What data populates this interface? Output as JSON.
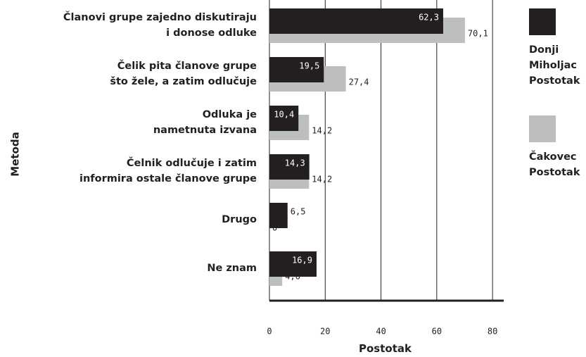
{
  "chart_data": {
    "type": "barh",
    "categories": [
      "Članovi grupe zajedno diskutiraju\ni donose odluke",
      "Čelik pita članove grupe\nšto žele, a zatim odlučuje",
      "Odluka je\nnametnuta izvana",
      "Čelnik odlučuje i zatim\ninformira ostale članove grupe",
      "Drugo",
      "Ne znam"
    ],
    "series": [
      {
        "name": "Donji Miholjac Postotak",
        "color": "#231f20",
        "values": [
          62.3,
          19.5,
          10.4,
          14.3,
          6.5,
          16.9
        ],
        "value_labels": [
          "62,3",
          "19,5",
          "10,4",
          "14,3",
          "6,5",
          "16,9"
        ]
      },
      {
        "name": "Čakovec Postotak",
        "color": "#bcbec0",
        "values": [
          70.1,
          27.4,
          14.2,
          14.2,
          0,
          4.6
        ],
        "value_labels": [
          "70,1",
          "27,4",
          "14,2",
          "14,2",
          "0",
          "4,6"
        ]
      }
    ],
    "xlabel": "Postotak",
    "ylabel": "Metoda",
    "xlim": [
      0,
      84
    ],
    "xticks": [
      0,
      20,
      40,
      60,
      80
    ],
    "grid": true,
    "legend": "right"
  }
}
